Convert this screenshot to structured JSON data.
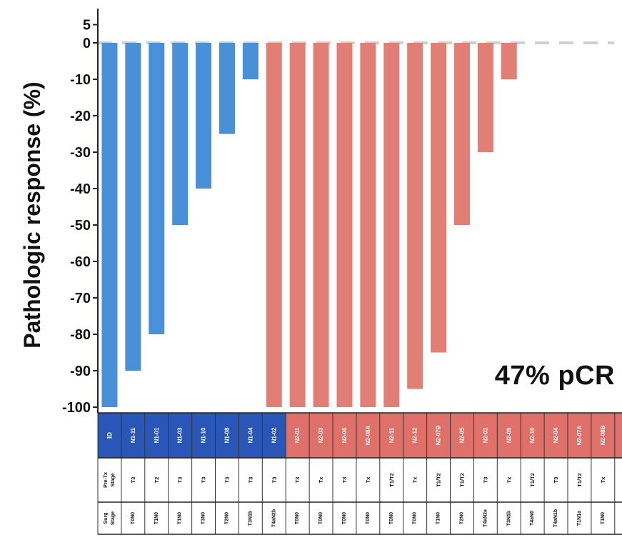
{
  "chart_data": {
    "type": "bar",
    "ylabel": "Pathologic response (%)",
    "ylim": [
      -100,
      5
    ],
    "yticks": [
      5,
      0,
      -10,
      -20,
      -30,
      -40,
      -50,
      -60,
      -70,
      -80,
      -90,
      -100
    ],
    "annotation": "47% pCR",
    "reference_line": 0,
    "groups": [
      {
        "name": "N1",
        "color": "#4A90D9",
        "header_color": "#2A56B8"
      },
      {
        "name": "N2",
        "color": "#E17F77",
        "header_color": "#E0716A"
      }
    ],
    "table_row_labels": [
      "ID",
      "Pre-Tx Stage",
      "Surg Stage"
    ],
    "categories": [
      "N1-11",
      "N1-01",
      "N1-03",
      "N1-10",
      "N1-08",
      "N1-04",
      "N1-02",
      "N2-01",
      "N2-03",
      "N2-06",
      "N2-08A",
      "N2-11",
      "N2-12",
      "N2-07B",
      "N2-05",
      "N2-02",
      "N2-09",
      "N2-10",
      "N2-04",
      "N2-07A",
      "N2-08B",
      "N2-13"
    ],
    "group_index": [
      0,
      0,
      0,
      0,
      0,
      0,
      0,
      1,
      1,
      1,
      1,
      1,
      1,
      1,
      1,
      1,
      1,
      1,
      1,
      1,
      1,
      1
    ],
    "values": [
      -100,
      -90,
      -80,
      -50,
      -40,
      -25,
      -10,
      -100,
      -100,
      -100,
      -100,
      -100,
      -100,
      -95,
      -85,
      -50,
      -30,
      -10,
      0,
      0,
      0,
      0
    ],
    "pre_tx_stage": [
      "T3",
      "T2",
      "T3",
      "T3",
      "T3",
      "T3",
      "T3",
      "T3",
      "Tx",
      "T3",
      "Tx",
      "T1/T2",
      "Tx",
      "T1/T2",
      "T1/T2",
      "T3",
      "Tx",
      "T1/T2",
      "T3",
      "T1/T2",
      "Tx",
      "T1/T2"
    ],
    "surg_stage": [
      "T0N0",
      "T1N0",
      "T1N0",
      "T3N0",
      "T2N0",
      "T3N1b",
      "T4aN2b",
      "T0N0",
      "T0N0",
      "T0N0",
      "T0N0",
      "T0N0",
      "T0N0",
      "T1N0",
      "T2N0",
      "T4aN2a",
      "T3N1b",
      "T4aN0",
      "T4aN1b",
      "T1N1a",
      "T1N0",
      "T1N0"
    ]
  }
}
